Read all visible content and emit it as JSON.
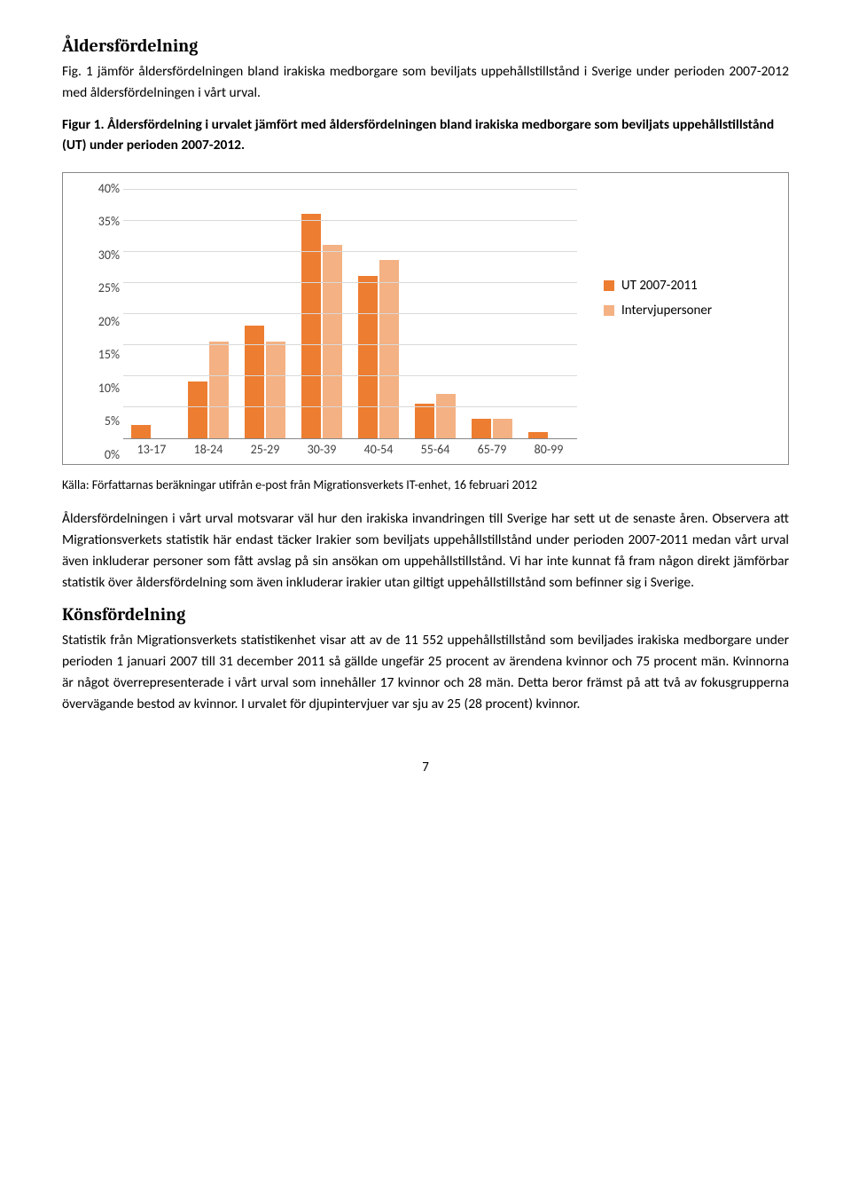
{
  "section1": {
    "title": "Åldersfördelning",
    "intro": "Fig. 1 jämför åldersfördelningen bland irakiska medborgare som beviljats uppehållstillstånd i Sverige under perioden 2007-2012 med åldersfördelningen i vårt urval.",
    "figure_caption": "Figur 1. Åldersfördelning i urvalet jämfört med åldersfördelningen bland irakiska medborgare som beviljats uppehållstillstånd (UT) under perioden 2007-2012.",
    "source": "Källa: Författarnas beräkningar utifrån e-post från Migrationsverkets IT-enhet, 16 februari 2012",
    "body": "Åldersfördelningen i vårt urval motsvarar väl hur den irakiska invandringen till Sverige har sett ut de senaste åren. Observera att Migrationsverkets statistik här endast täcker Irakier som beviljats uppehållstillstånd under perioden 2007-2011 medan vårt urval även inkluderar personer som fått avslag på sin ansökan om uppehållstillstånd. Vi har inte kunnat få fram någon direkt jämförbar statistik över åldersfördelning som även inkluderar irakier utan giltigt uppehållstillstånd som befinner sig i Sverige."
  },
  "section2": {
    "title": "Könsfördelning",
    "body": "Statistik från Migrationsverkets statistikenhet visar att av de 11 552 uppehållstillstånd som beviljades irakiska medborgare under perioden 1 januari 2007 till 31 december 2011 så gällde ungefär 25 procent av ärendena kvinnor och 75 procent män. Kvinnorna är något överrepresenterade i vårt urval som innehåller 17 kvinnor och 28 män. Detta beror främst på att två av fokusgrupperna övervägande bestod av kvinnor. I urvalet för djupintervjuer var sju av 25 (28 procent) kvinnor."
  },
  "chart": {
    "type": "bar",
    "categories": [
      "13-17",
      "18-24",
      "25-29",
      "30-39",
      "40-54",
      "55-64",
      "65-79",
      "80-99"
    ],
    "series": [
      {
        "label": "UT 2007-2011",
        "color": "#ed7d31",
        "values": [
          2,
          9,
          18,
          36,
          26,
          5.5,
          3,
          1
        ]
      },
      {
        "label": "Intervjupersoner",
        "color": "#f4b183",
        "values": [
          0,
          15.5,
          15.5,
          31,
          28.5,
          7,
          3,
          0
        ]
      }
    ],
    "ylim": [
      0,
      40
    ],
    "ytick_step": 5,
    "yticks": [
      "40%",
      "35%",
      "30%",
      "25%",
      "20%",
      "15%",
      "10%",
      "5%",
      "0%"
    ],
    "grid_color": "#d9d9d9",
    "axis_color": "#888888",
    "background_color": "#ffffff"
  },
  "page_number": "7"
}
